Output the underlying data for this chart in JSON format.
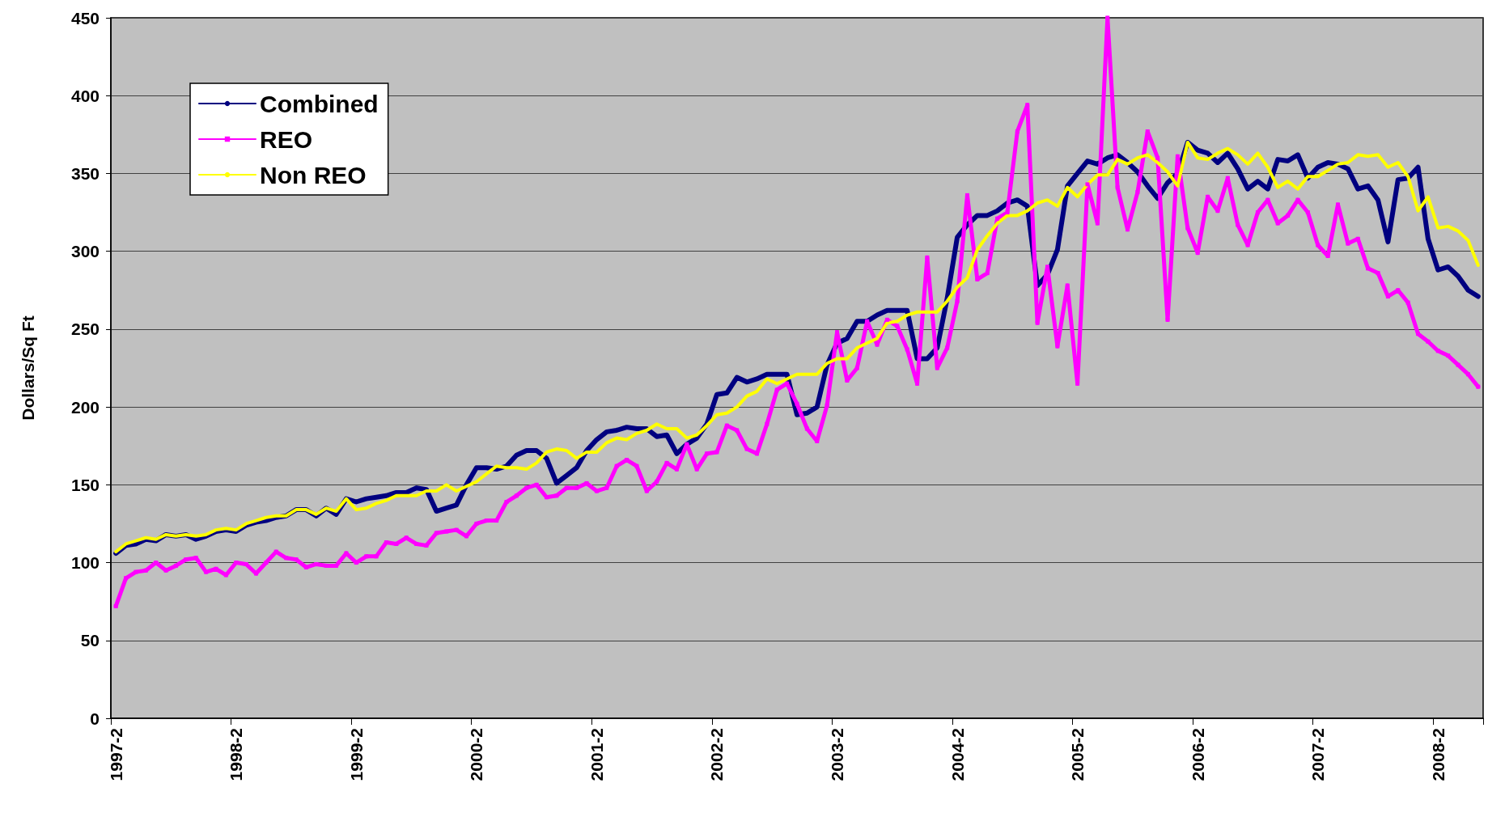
{
  "chart_data": {
    "type": "line",
    "ylabel": "Dollars/Sq Ft",
    "categories": [
      "1997-2",
      null,
      null,
      null,
      null,
      null,
      null,
      null,
      null,
      null,
      null,
      null,
      "1998-2",
      null,
      null,
      null,
      null,
      null,
      null,
      null,
      null,
      null,
      null,
      null,
      "1999-2",
      null,
      null,
      null,
      null,
      null,
      null,
      null,
      null,
      null,
      null,
      null,
      "2000-2",
      null,
      null,
      null,
      null,
      null,
      null,
      null,
      null,
      null,
      null,
      null,
      "2001-2",
      null,
      null,
      null,
      null,
      null,
      null,
      null,
      null,
      null,
      null,
      null,
      "2002-2",
      null,
      null,
      null,
      null,
      null,
      null,
      null,
      null,
      null,
      null,
      null,
      "2003-2",
      null,
      null,
      null,
      null,
      null,
      null,
      null,
      null,
      null,
      null,
      null,
      "2004-2",
      null,
      null,
      null,
      null,
      null,
      null,
      null,
      null,
      null,
      null,
      null,
      "2005-2",
      null,
      null,
      null,
      null,
      null,
      null,
      null,
      null,
      null,
      null,
      null,
      "2006-2",
      null,
      null,
      null,
      null,
      null,
      null,
      null,
      null,
      null,
      null,
      null,
      "2007-2",
      null,
      null,
      null,
      null,
      null,
      null,
      null,
      null,
      null,
      null,
      null,
      "2008-2",
      null,
      null,
      null,
      null
    ],
    "series": [
      {
        "name": "Combined",
        "color": "#000080",
        "marker": "none",
        "values": [
          106,
          111,
          112,
          115,
          114,
          118,
          117,
          118,
          115,
          117,
          120,
          121,
          120,
          124,
          126,
          127,
          129,
          130,
          134,
          134,
          130,
          135,
          131,
          141,
          139,
          141,
          142,
          143,
          145,
          145,
          148,
          147,
          133,
          135,
          137,
          150,
          161,
          161,
          160,
          162,
          169,
          172,
          172,
          167,
          151,
          156,
          161,
          172,
          179,
          184,
          185,
          187,
          186,
          186,
          181,
          182,
          170,
          176,
          180,
          189,
          208,
          209,
          219,
          216,
          218,
          221,
          221,
          221,
          195,
          196,
          200,
          227,
          241,
          244,
          255,
          255,
          259,
          262,
          262,
          262,
          231,
          231,
          238,
          270,
          309,
          317,
          323,
          323,
          326,
          331,
          333,
          329,
          278,
          285,
          301,
          342,
          350,
          358,
          356,
          360,
          362,
          357,
          351,
          342,
          334,
          344,
          350,
          370,
          365,
          363,
          357,
          363,
          353,
          340,
          345,
          340,
          359,
          358,
          362,
          347,
          354,
          357,
          356,
          353,
          340,
          342,
          333,
          306,
          346,
          347,
          354,
          308,
          288,
          290,
          284,
          275,
          271
        ]
      },
      {
        "name": "REO",
        "color": "#ff00ff",
        "marker": "square",
        "values": [
          72,
          90,
          94,
          95,
          100,
          95,
          98,
          102,
          103,
          94,
          96,
          92,
          100,
          99,
          93,
          100,
          107,
          103,
          102,
          97,
          99,
          98,
          98,
          106,
          100,
          104,
          104,
          113,
          112,
          116,
          112,
          111,
          119,
          120,
          121,
          117,
          125,
          127,
          127,
          139,
          143,
          148,
          150,
          142,
          143,
          148,
          148,
          151,
          146,
          148,
          162,
          166,
          162,
          146,
          152,
          164,
          160,
          176,
          160,
          170,
          171,
          188,
          185,
          173,
          170,
          189,
          211,
          215,
          202,
          186,
          178,
          201,
          248,
          217,
          225,
          255,
          240,
          256,
          252,
          237,
          215,
          296,
          225,
          238,
          268,
          336,
          282,
          286,
          321,
          325,
          377,
          394,
          254,
          290,
          239,
          278,
          215,
          343,
          318,
          450,
          341,
          314,
          338,
          377,
          360,
          256,
          361,
          315,
          299,
          335,
          326,
          347,
          317,
          304,
          325,
          333,
          318,
          323,
          333,
          325,
          304,
          297,
          330,
          305,
          308,
          289,
          286,
          271,
          275,
          267,
          247,
          242,
          236,
          233,
          227,
          221,
          213
        ]
      },
      {
        "name": "Non REO",
        "color": "#ffff00",
        "marker": "none",
        "values": [
          107,
          112,
          114,
          116,
          115,
          118,
          117,
          118,
          117,
          118,
          121,
          122,
          121,
          125,
          127,
          129,
          130,
          130,
          134,
          134,
          131,
          135,
          133,
          141,
          134,
          135,
          138,
          140,
          143,
          143,
          143,
          146,
          146,
          150,
          146,
          149,
          152,
          157,
          162,
          161,
          161,
          160,
          164,
          171,
          173,
          172,
          167,
          171,
          171,
          177,
          180,
          179,
          183,
          185,
          189,
          186,
          186,
          180,
          182,
          188,
          195,
          196,
          200,
          207,
          210,
          218,
          215,
          218,
          221,
          221,
          221,
          228,
          231,
          231,
          238,
          241,
          244,
          254,
          255,
          259,
          261,
          261,
          261,
          268,
          277,
          283,
          301,
          310,
          318,
          323,
          323,
          326,
          331,
          333,
          329,
          341,
          335,
          343,
          349,
          349,
          359,
          356,
          360,
          362,
          357,
          351,
          342,
          370,
          360,
          359,
          363,
          366,
          362,
          356,
          363,
          354,
          341,
          345,
          340,
          348,
          348,
          352,
          356,
          357,
          362,
          361,
          362,
          354,
          357,
          348,
          326,
          335,
          315,
          316,
          313,
          307,
          291
        ]
      }
    ],
    "ylim": [
      0,
      450
    ],
    "yticks": [
      0,
      50,
      100,
      150,
      200,
      250,
      300,
      350,
      400,
      450
    ],
    "grid": "y",
    "legend": "top left",
    "line_style": "solid"
  }
}
